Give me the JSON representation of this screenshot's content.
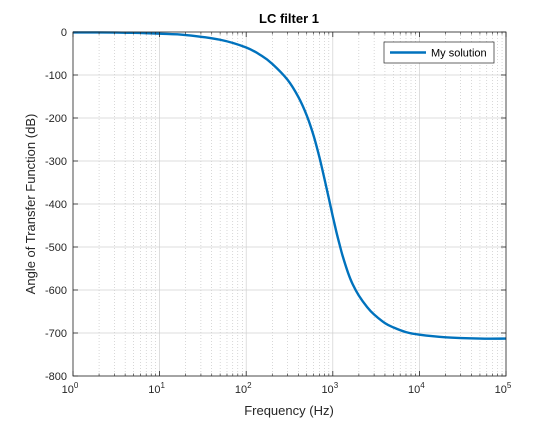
{
  "chart_data": {
    "type": "line",
    "title": "LC filter 1",
    "xlabel": "Frequency (Hz)",
    "ylabel": "Angle of Transfer Function (dB)",
    "xscale": "log",
    "xlim": [
      1,
      100000
    ],
    "ylim": [
      -800,
      0
    ],
    "grid": true,
    "minor_grid": true,
    "legend_position": "top-right",
    "xticks": [
      {
        "value": 1,
        "base": "10",
        "exp": "0"
      },
      {
        "value": 10,
        "base": "10",
        "exp": "1"
      },
      {
        "value": 100,
        "base": "10",
        "exp": "2"
      },
      {
        "value": 1000,
        "base": "10",
        "exp": "3"
      },
      {
        "value": 10000,
        "base": "10",
        "exp": "4"
      },
      {
        "value": 100000,
        "base": "10",
        "exp": "5"
      }
    ],
    "yticks": [
      {
        "value": 0,
        "label": "0"
      },
      {
        "value": -100,
        "label": "-100"
      },
      {
        "value": -200,
        "label": "-200"
      },
      {
        "value": -300,
        "label": "-300"
      },
      {
        "value": -400,
        "label": "-400"
      },
      {
        "value": -500,
        "label": "-500"
      },
      {
        "value": -600,
        "label": "-600"
      },
      {
        "value": -700,
        "label": "-700"
      },
      {
        "value": -800,
        "label": "-800"
      }
    ],
    "series": [
      {
        "name": "My solution",
        "color": "#0072bd",
        "x": [
          1,
          2,
          5,
          10,
          20,
          50,
          100,
          150,
          200,
          300,
          400,
          500,
          600,
          700,
          800,
          900,
          1000,
          1100,
          1200,
          1300,
          1500,
          1700,
          2000,
          2500,
          3000,
          4000,
          5000,
          7000,
          10000,
          20000,
          50000,
          100000
        ],
        "y": [
          -1,
          -1,
          -2,
          -4,
          -7,
          -18,
          -36,
          -55,
          -74,
          -111,
          -151,
          -194,
          -241,
          -291,
          -341,
          -387,
          -429,
          -465,
          -495,
          -521,
          -560,
          -587,
          -613,
          -640,
          -657,
          -677,
          -687,
          -698,
          -704,
          -710,
          -713,
          -713
        ]
      }
    ]
  }
}
